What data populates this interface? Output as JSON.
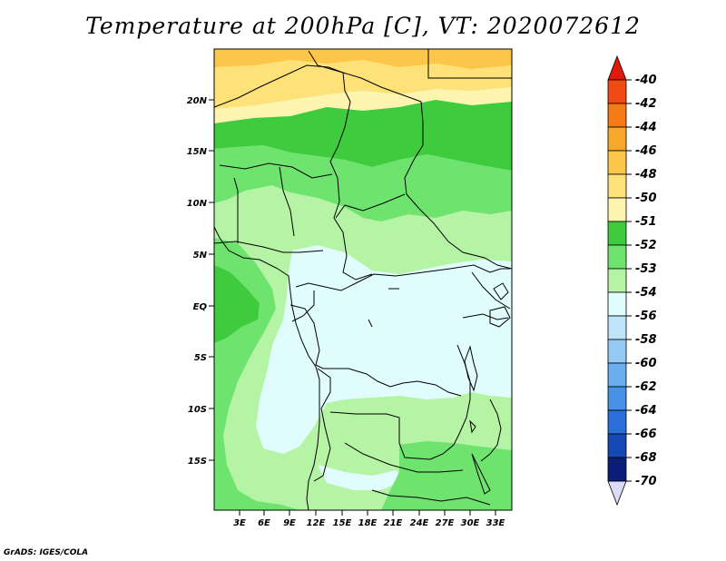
{
  "title": "Temperature at 200hPa [C], VT: 2020072612",
  "credit": "GrADS: IGES/COLA",
  "map": {
    "lat_labels": [
      "20N",
      "15N",
      "10N",
      "5N",
      "EQ",
      "5S",
      "10S",
      "15S"
    ],
    "lon_labels": [
      "3E",
      "6E",
      "9E",
      "12E",
      "15E",
      "18E",
      "21E",
      "24E",
      "27E",
      "30E",
      "33E"
    ]
  },
  "colorbar": {
    "labels": [
      "-40",
      "-42",
      "-44",
      "-46",
      "-48",
      "-50",
      "-51",
      "-52",
      "-53",
      "-54",
      "-56",
      "-58",
      "-60",
      "-62",
      "-64",
      "-66",
      "-68",
      "-70"
    ],
    "colors": [
      "#e8220e",
      "#f14a12",
      "#f67a16",
      "#f9a72a",
      "#fbc64a",
      "#fde27a",
      "#fdf4b0",
      "#3ecc3e",
      "#6ee36e",
      "#b5f3a5",
      "#e0fcfd",
      "#bde4fb",
      "#93cbf6",
      "#6aaef0",
      "#4791e8",
      "#2a6fd9",
      "#1648b5",
      "#0a1e78"
    ],
    "top_arrow_color": "#e01a08",
    "bottom_arrow_color": "#dcdcf8"
  },
  "fields": {
    "c_m48": "#fbc64a",
    "c_m50": "#fde27a",
    "c_m51": "#fdf4b0",
    "c_m52": "#3ecc3e",
    "c_m53": "#6ee36e",
    "c_m54": "#b5f3a5",
    "c_m56": "#e0fcfd"
  }
}
